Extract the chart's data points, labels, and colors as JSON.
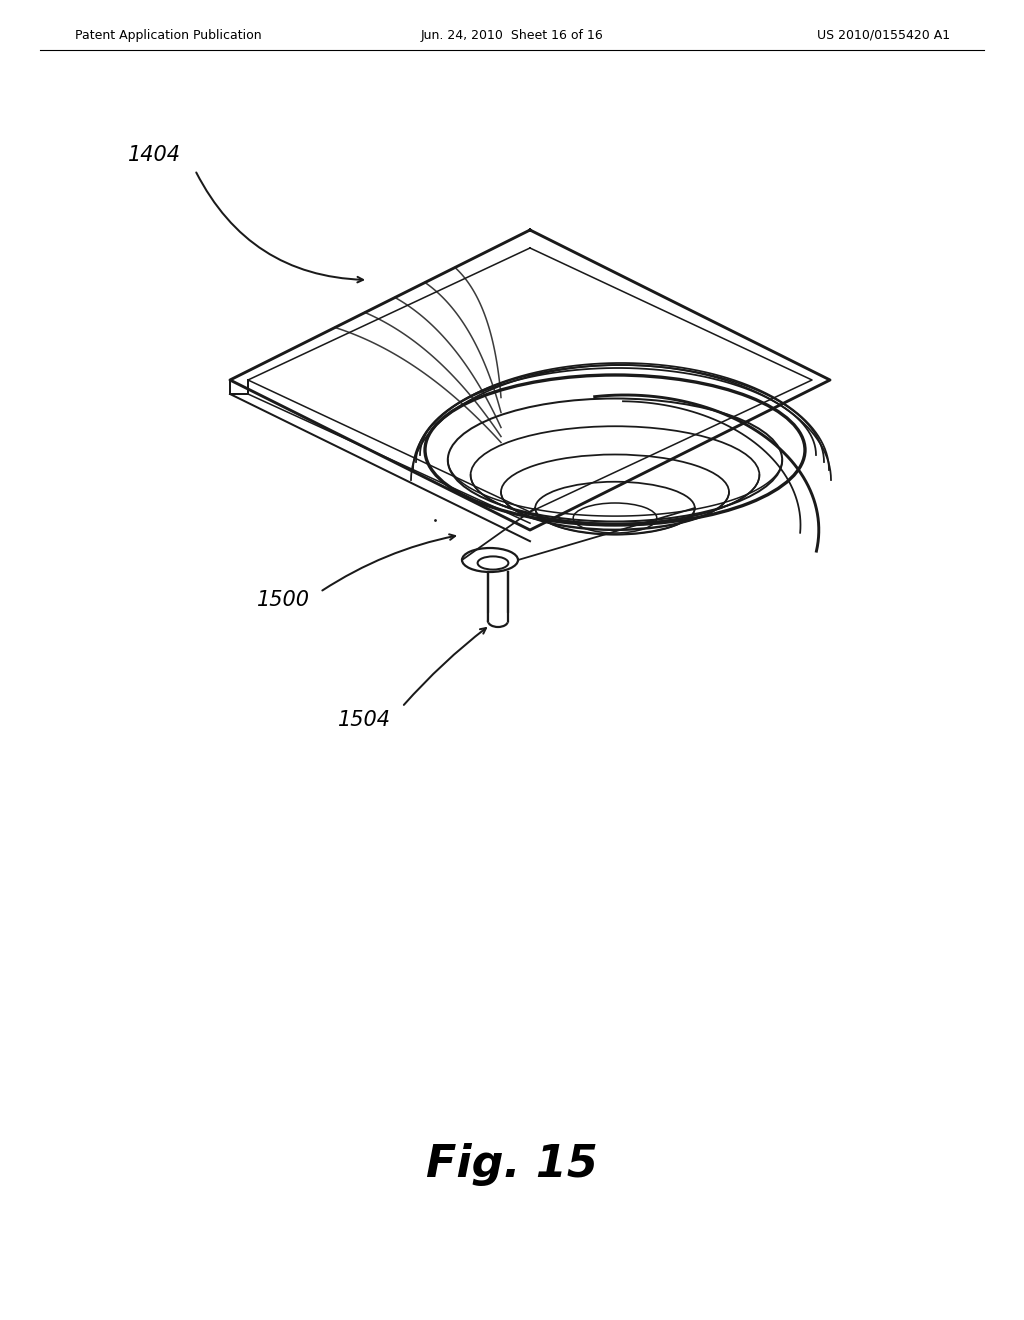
{
  "bg_color": "#ffffff",
  "header_left": "Patent Application Publication",
  "header_center": "Jun. 24, 2010  Sheet 16 of 16",
  "header_right": "US 2010/0155420 A1",
  "fig_label": "Fig. 15",
  "line_color": "#1a1a1a",
  "line_width": 1.6
}
